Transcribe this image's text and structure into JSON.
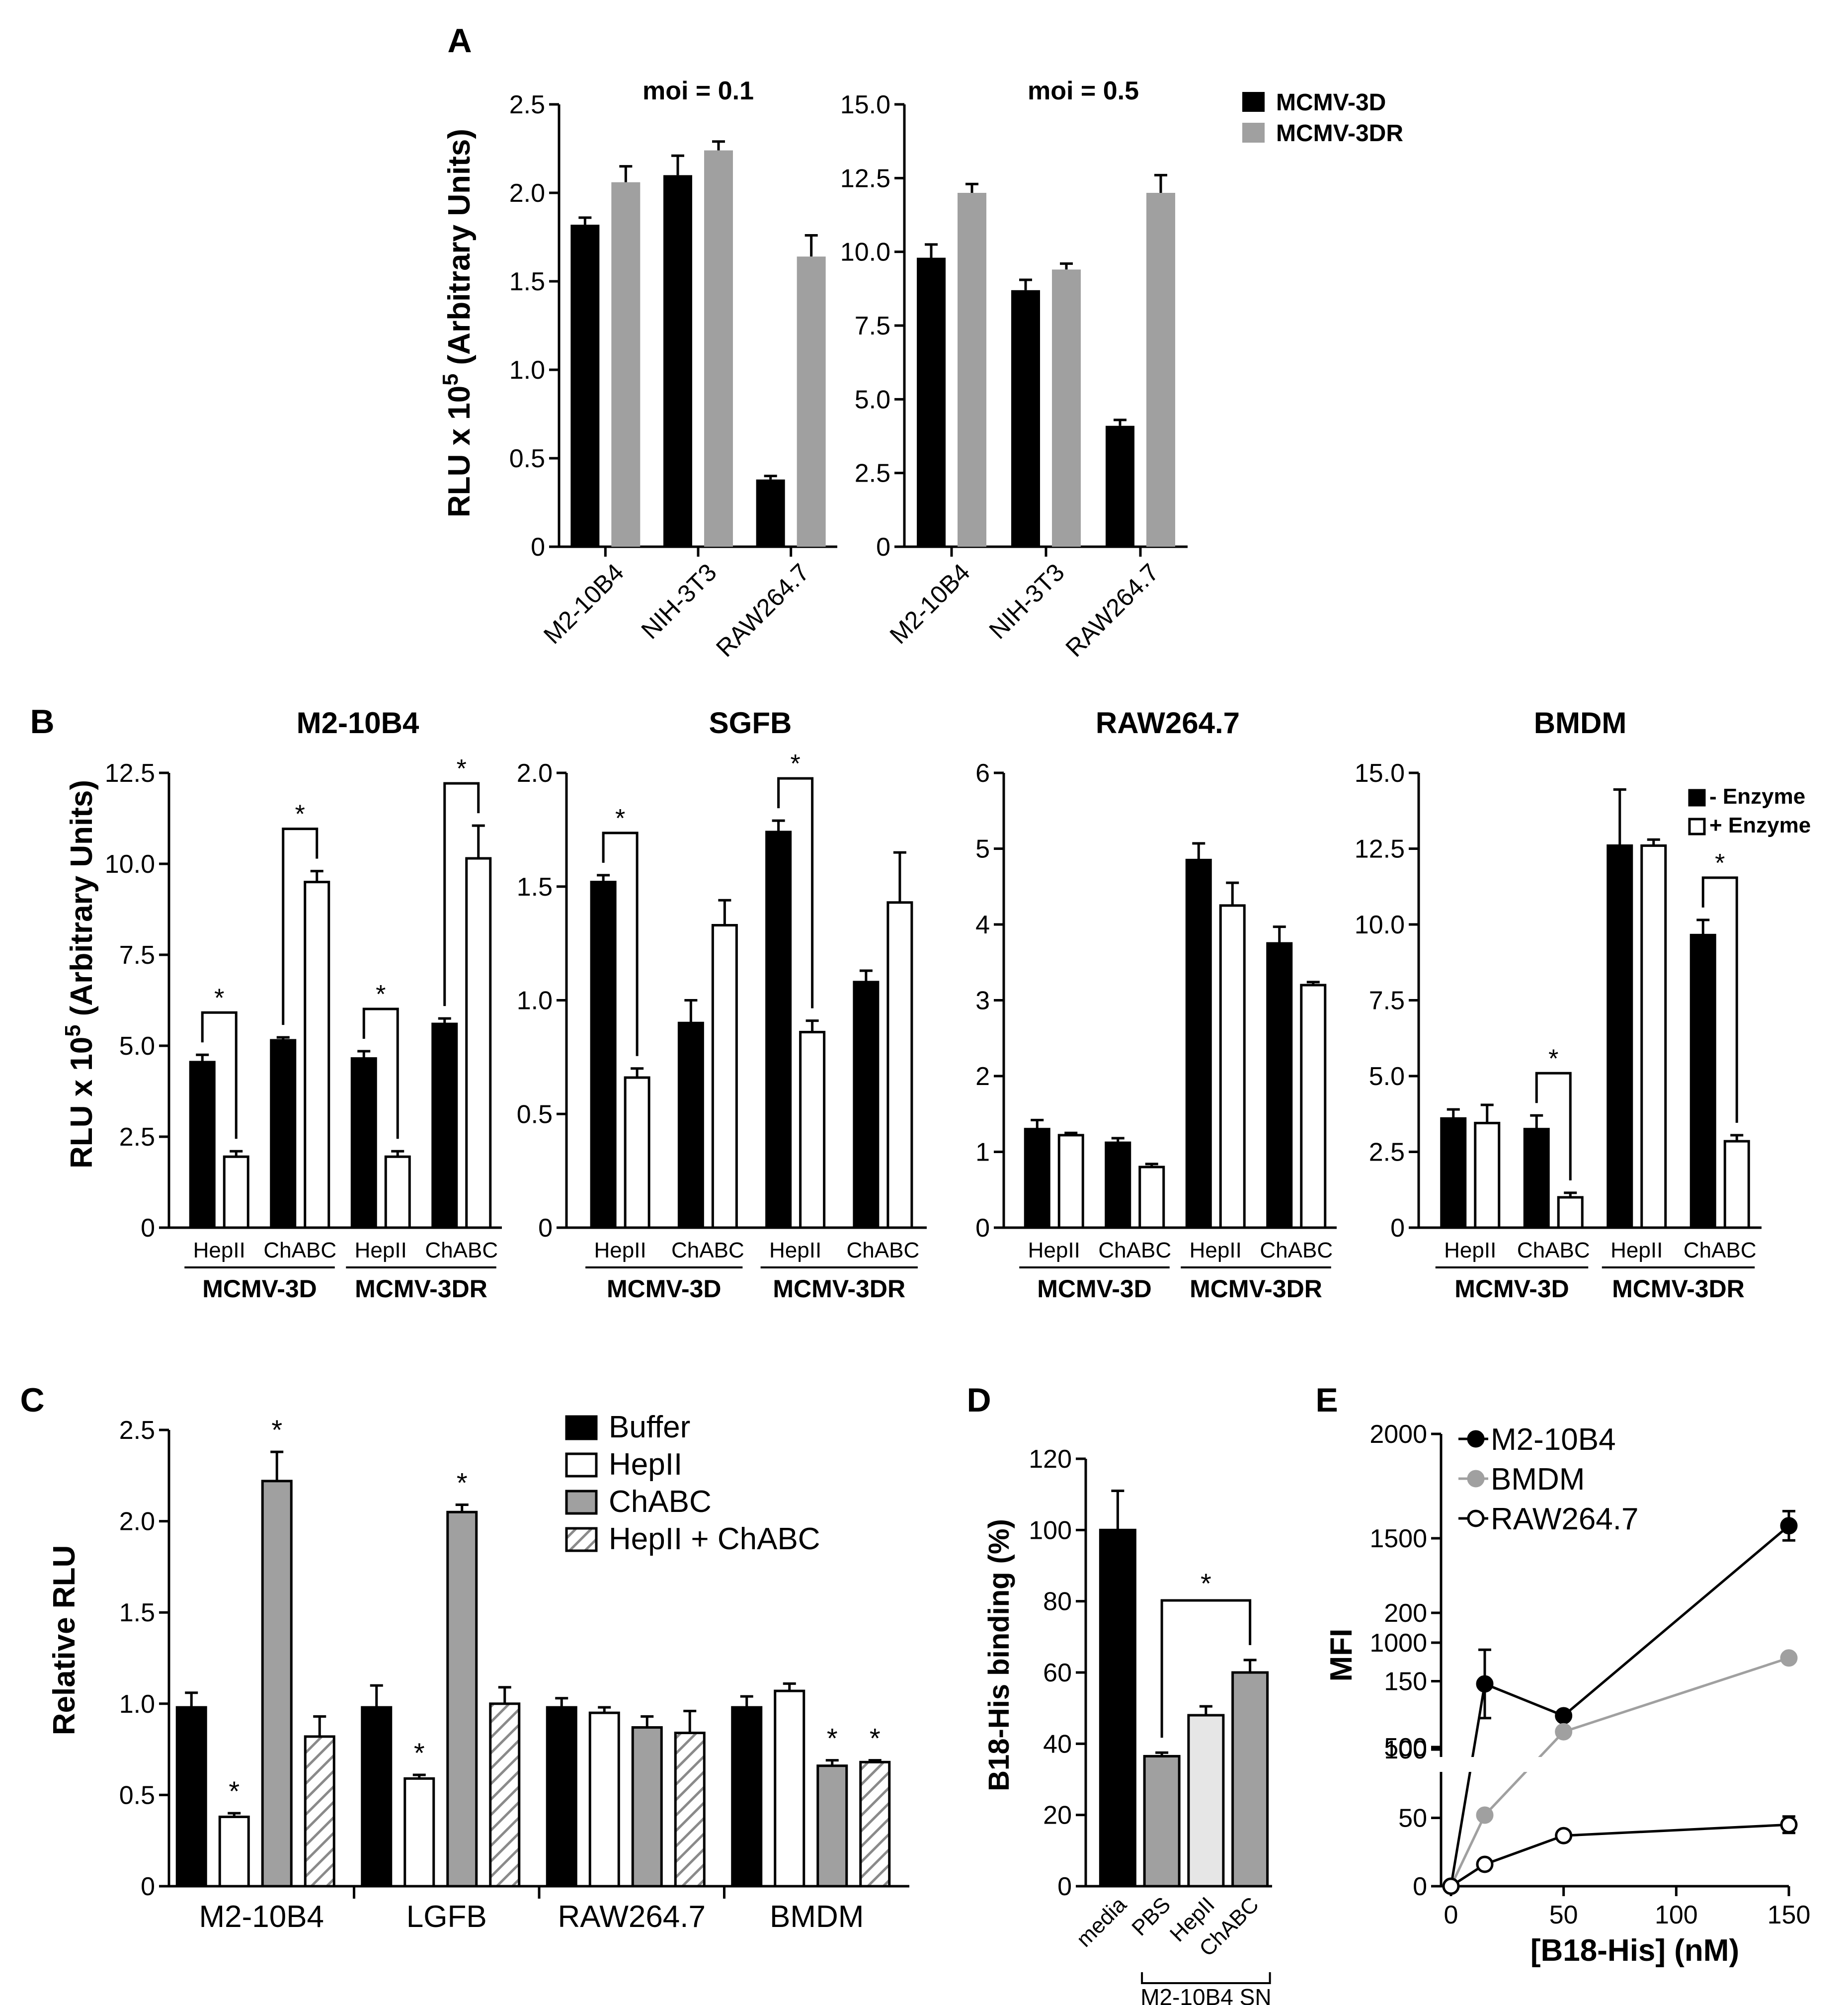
{
  "chart_data": [
    {
      "panel_label": "A",
      "type": "bar",
      "ylabel_main": "RLU x 10",
      "ylabel_exp": "5",
      "ylabel_tail": " (Arbitrary Units)",
      "legend": [
        {
          "name": "MCMV-3D",
          "color": "#000000"
        },
        {
          "name": "MCMV-3DR",
          "color": "#a0a0a0"
        }
      ],
      "subplots": [
        {
          "title": "moi = 0.1",
          "categories": [
            "M2-10B4",
            "NIH-3T3",
            "RAW264.7"
          ],
          "ylim": [
            0,
            2.5
          ],
          "yticks": [
            "0",
            "0.5",
            "1.0",
            "1.5",
            "2.0",
            "2.5"
          ],
          "series": [
            {
              "name": "MCMV-3D",
              "values": [
                1.82,
                2.1,
                0.38
              ],
              "errors": [
                0.04,
                0.11,
                0.02
              ]
            },
            {
              "name": "MCMV-3DR",
              "values": [
                2.06,
                2.24,
                1.64
              ],
              "errors": [
                0.09,
                0.05,
                0.12
              ]
            }
          ]
        },
        {
          "title": "moi = 0.5",
          "categories": [
            "M2-10B4",
            "NIH-3T3",
            "RAW264.7"
          ],
          "ylim": [
            0,
            15
          ],
          "yticks": [
            "0",
            "2.5",
            "5.0",
            "7.5",
            "10.0",
            "12.5",
            "15.0"
          ],
          "series": [
            {
              "name": "MCMV-3D",
              "values": [
                9.8,
                8.7,
                4.1
              ],
              "errors": [
                0.45,
                0.35,
                0.2
              ]
            },
            {
              "name": "MCMV-3DR",
              "values": [
                12.0,
                9.4,
                12.0
              ],
              "errors": [
                0.3,
                0.2,
                0.6
              ]
            }
          ]
        }
      ]
    },
    {
      "panel_label": "B",
      "type": "bar",
      "ylabel_main": "RLU x 10",
      "ylabel_exp": "5",
      "ylabel_tail": " (Arbitrary Units)",
      "legend": [
        {
          "name": "- Enzyme",
          "color": "#000000"
        },
        {
          "name": "+ Enzyme",
          "color": "#ffffff"
        }
      ],
      "group_labels": [
        "MCMV-3D",
        "MCMV-3DR"
      ],
      "treatments": [
        "HepII",
        "ChABC",
        "HepII",
        "ChABC"
      ],
      "subplots": [
        {
          "title": "M2-10B4",
          "ylim": [
            0,
            12.5
          ],
          "yticks": [
            "0",
            "2.5",
            "5.0",
            "7.5",
            "10.0",
            "12.5"
          ],
          "series": [
            {
              "name": "- Enzyme",
              "values": [
                4.55,
                5.15,
                4.65,
                5.6
              ],
              "errors": [
                0.2,
                0.08,
                0.2,
                0.15
              ]
            },
            {
              "name": "+ Enzyme",
              "values": [
                1.95,
                9.5,
                1.95,
                10.15
              ],
              "errors": [
                0.15,
                0.3,
                0.15,
                0.9
              ]
            }
          ],
          "significance": [
            {
              "pair": 0,
              "label": "*"
            },
            {
              "pair": 1,
              "label": "*"
            },
            {
              "pair": 2,
              "label": "*"
            },
            {
              "pair": 3,
              "label": "*"
            }
          ]
        },
        {
          "title": "SGFB",
          "ylim": [
            0,
            2.0
          ],
          "yticks": [
            "0",
            "0.5",
            "1.0",
            "1.5",
            "2.0"
          ],
          "series": [
            {
              "name": "- Enzyme",
              "values": [
                1.52,
                0.9,
                1.74,
                1.08
              ],
              "errors": [
                0.03,
                0.1,
                0.05,
                0.05
              ]
            },
            {
              "name": "+ Enzyme",
              "values": [
                0.66,
                1.33,
                0.86,
                1.43
              ],
              "errors": [
                0.04,
                0.11,
                0.05,
                0.22
              ]
            }
          ],
          "significance": [
            {
              "pair": 0,
              "label": "*"
            },
            {
              "pair": 2,
              "label": "*"
            }
          ]
        },
        {
          "title": "RAW264.7",
          "ylim": [
            0,
            6
          ],
          "yticks": [
            "0",
            "1",
            "2",
            "3",
            "4",
            "5",
            "6"
          ],
          "series": [
            {
              "name": "- Enzyme",
              "values": [
                1.3,
                1.12,
                4.85,
                3.75
              ],
              "errors": [
                0.12,
                0.06,
                0.22,
                0.22
              ]
            },
            {
              "name": "+ Enzyme",
              "values": [
                1.22,
                0.8,
                4.25,
                3.2
              ],
              "errors": [
                0.03,
                0.04,
                0.3,
                0.04
              ]
            }
          ],
          "significance": []
        },
        {
          "title": "BMDM",
          "ylim": [
            0,
            15
          ],
          "yticks": [
            "0",
            "2.5",
            "5.0",
            "7.5",
            "10.0",
            "12.5",
            "15.0"
          ],
          "series": [
            {
              "name": "- Enzyme",
              "values": [
                3.6,
                3.25,
                12.6,
                9.65
              ],
              "errors": [
                0.3,
                0.45,
                1.85,
                0.5
              ]
            },
            {
              "name": "+ Enzyme",
              "values": [
                3.45,
                1.0,
                12.6,
                2.85
              ],
              "errors": [
                0.6,
                0.15,
                0.2,
                0.2
              ]
            }
          ],
          "significance": [
            {
              "pair": 1,
              "label": "*"
            },
            {
              "pair": 3,
              "label": "*"
            }
          ]
        }
      ]
    },
    {
      "panel_label": "C",
      "type": "bar",
      "ylabel": "Relative RLU",
      "ylim": [
        0,
        2.5
      ],
      "yticks": [
        "0",
        "0.5",
        "1.0",
        "1.5",
        "2.0",
        "2.5"
      ],
      "categories": [
        "M2-10B4",
        "LGFB",
        "RAW264.7",
        "BMDM"
      ],
      "series": [
        {
          "name": "Buffer",
          "values": [
            0.98,
            0.98,
            0.98,
            0.98
          ],
          "errors": [
            0.08,
            0.12,
            0.05,
            0.06
          ],
          "stars": [
            false,
            false,
            false,
            false
          ]
        },
        {
          "name": "HepII",
          "values": [
            0.38,
            0.59,
            0.95,
            1.07
          ],
          "errors": [
            0.02,
            0.02,
            0.03,
            0.04
          ],
          "stars": [
            true,
            true,
            false,
            false
          ]
        },
        {
          "name": "ChABC",
          "values": [
            2.22,
            2.05,
            0.87,
            0.66
          ],
          "errors": [
            0.16,
            0.04,
            0.06,
            0.03
          ],
          "stars": [
            true,
            true,
            false,
            true
          ]
        },
        {
          "name": "HepII + ChABC",
          "values": [
            0.82,
            1.0,
            0.84,
            0.68
          ],
          "errors": [
            0.11,
            0.09,
            0.12,
            0.01
          ],
          "stars": [
            false,
            false,
            false,
            true
          ]
        }
      ]
    },
    {
      "panel_label": "D",
      "type": "bar",
      "ylabel": "B18-His binding (%)",
      "ylim": [
        0,
        120
      ],
      "yticks": [
        "0",
        "20",
        "40",
        "60",
        "80",
        "100",
        "120"
      ],
      "categories": [
        "media",
        "PBS",
        "HepII",
        "ChABC"
      ],
      "colors": [
        "#000000",
        "#a0a0a0",
        "#e6e6e6",
        "#a0a0a0"
      ],
      "values": [
        100,
        36.5,
        48,
        60
      ],
      "errors": [
        11,
        1,
        2.5,
        3.5
      ],
      "bracket_label": "M2-10B4 SN",
      "significance": "*"
    },
    {
      "panel_label": "E",
      "type": "line",
      "xlabel": "[B18-His] (nM)",
      "ylabel": "MFI",
      "xlim": [
        0,
        150
      ],
      "xticks": [
        "0",
        "50",
        "100",
        "150"
      ],
      "yticks_lower": [
        "0",
        "50",
        "100",
        "150",
        "200"
      ],
      "yticks_upper": [
        "500",
        "1000",
        "1500",
        "2000"
      ],
      "series": [
        {
          "name": "M2-10B4",
          "x": [
            0,
            15,
            50,
            150
          ],
          "y": [
            0,
            148,
            650,
            1560
          ],
          "errors": [
            0,
            25,
            0,
            70
          ],
          "color": "#000000",
          "marker": "filled"
        },
        {
          "name": "BMDM",
          "x": [
            0,
            15,
            50,
            150
          ],
          "y": [
            0,
            52,
            113,
            167
          ],
          "errors": [
            0,
            0,
            0,
            0
          ],
          "color": "#a0a0a0",
          "marker": "filled"
        },
        {
          "name": "RAW264.7",
          "x": [
            0,
            15,
            50,
            150
          ],
          "y": [
            0,
            16,
            37,
            45
          ],
          "errors": [
            0,
            0,
            3,
            6
          ],
          "color": "#000000",
          "marker": "open"
        }
      ]
    }
  ]
}
